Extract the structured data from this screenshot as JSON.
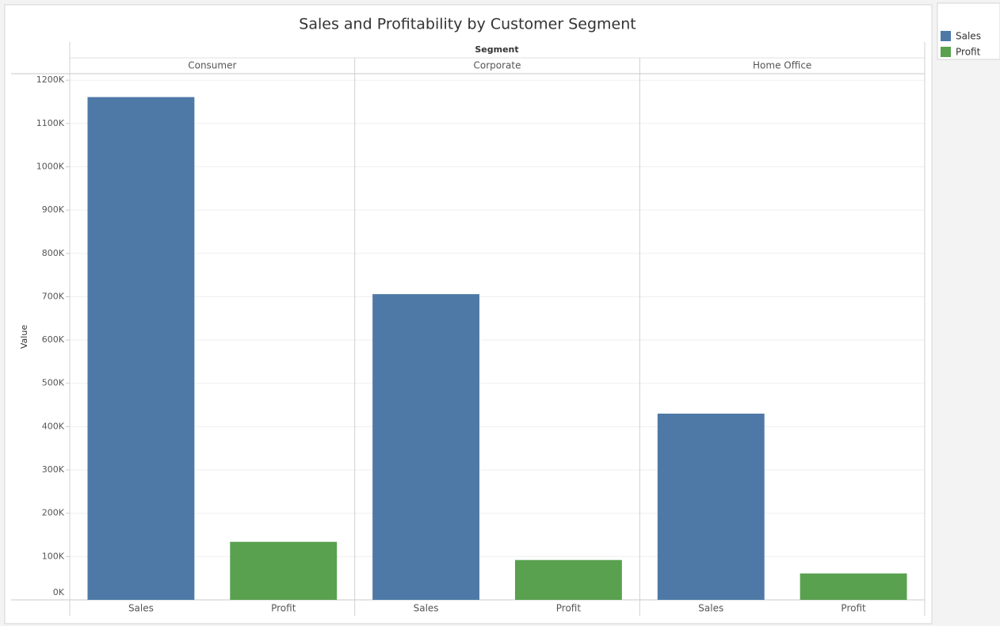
{
  "chart_data": {
    "type": "bar",
    "title": "Sales and Profitability by Customer Segment",
    "column_header": "Segment",
    "y_label": "Value",
    "categories": [
      "Consumer",
      "Corporate",
      "Home Office"
    ],
    "series": [
      {
        "name": "Sales",
        "color": "#4e79a7",
        "values": [
          1161000,
          706000,
          430000
        ]
      },
      {
        "name": "Profit",
        "color": "#59a14f",
        "values": [
          134000,
          92000,
          61000
        ]
      }
    ],
    "ylim": [
      0,
      1215000
    ],
    "yticks": [
      {
        "value": 0,
        "label": "0K"
      },
      {
        "value": 100000,
        "label": "100K"
      },
      {
        "value": 200000,
        "label": "200K"
      },
      {
        "value": 300000,
        "label": "300K"
      },
      {
        "value": 400000,
        "label": "400K"
      },
      {
        "value": 500000,
        "label": "500K"
      },
      {
        "value": 600000,
        "label": "600K"
      },
      {
        "value": 700000,
        "label": "700K"
      },
      {
        "value": 800000,
        "label": "800K"
      },
      {
        "value": 900000,
        "label": "900K"
      },
      {
        "value": 1000000,
        "label": "1000K"
      },
      {
        "value": 1100000,
        "label": "1100K"
      },
      {
        "value": 1200000,
        "label": "1200K"
      }
    ],
    "grid": true,
    "legend": "right"
  }
}
